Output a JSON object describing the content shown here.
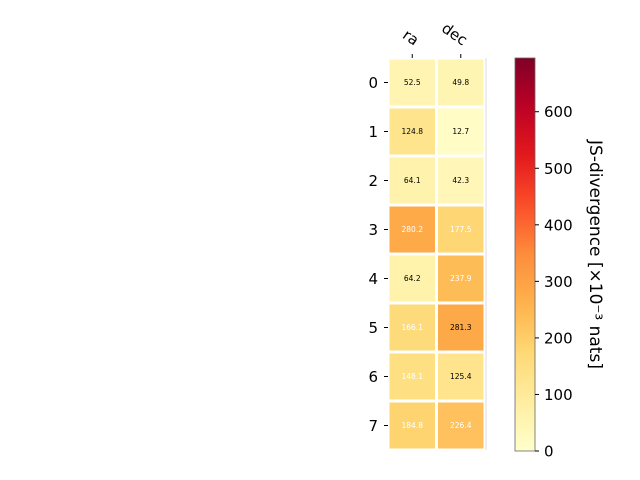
{
  "chart_data": {
    "type": "heatmap",
    "columns": [
      "ra",
      "dec"
    ],
    "rows": [
      "0",
      "1",
      "2",
      "3",
      "4",
      "5",
      "6",
      "7"
    ],
    "values": [
      [
        52.5,
        49.8
      ],
      [
        124.8,
        12.7
      ],
      [
        64.1,
        42.3
      ],
      [
        280.2,
        177.5
      ],
      [
        64.2,
        237.9
      ],
      [
        166.1,
        281.3
      ],
      [
        148.1,
        125.4
      ],
      [
        184.8,
        226.4
      ]
    ],
    "cell_labels": [
      [
        "52.5",
        "49.8"
      ],
      [
        "124.8",
        "12.7"
      ],
      [
        "64.1",
        "42.3"
      ],
      [
        "280.2",
        "177.5"
      ],
      [
        "64.2",
        "237.9"
      ],
      [
        "166.1",
        "281.3"
      ],
      [
        "148.1",
        "125.4"
      ],
      [
        "184.8",
        "226.4"
      ]
    ],
    "cell_text_colors": [
      [
        "#000000",
        "#000000"
      ],
      [
        "#000000",
        "#000000"
      ],
      [
        "#000000",
        "#000000"
      ],
      [
        "#ffffff",
        "#ffffff"
      ],
      [
        "#000000",
        "#ffffff"
      ],
      [
        "#ffffff",
        "#000000"
      ],
      [
        "#ffffff",
        "#000000"
      ],
      [
        "#ffffff",
        "#ffffff"
      ]
    ],
    "colormap": "YlOrRd",
    "colorbar": {
      "label": "JS-divergence [×10⁻³ nats]",
      "range": [
        0,
        695
      ],
      "ticks": [
        0,
        100,
        200,
        300,
        400,
        500,
        600
      ],
      "tick_labels": [
        "0",
        "100",
        "200",
        "300",
        "400",
        "500",
        "600"
      ]
    },
    "grid": false
  }
}
